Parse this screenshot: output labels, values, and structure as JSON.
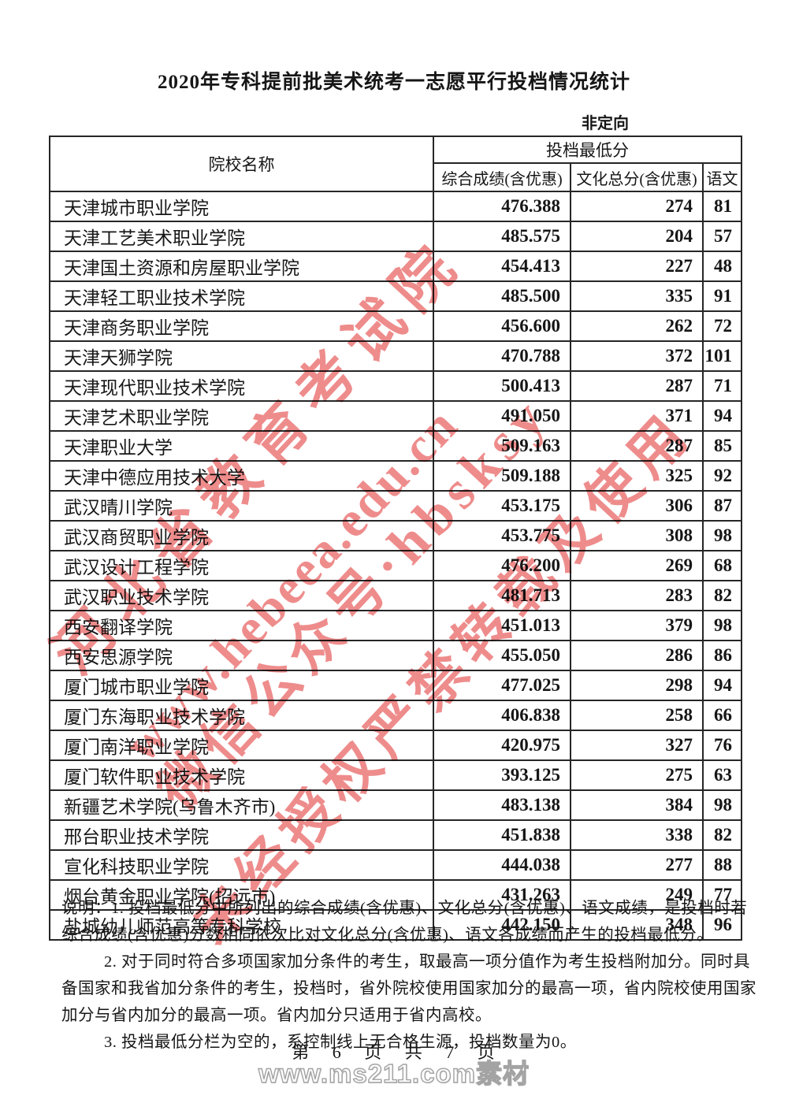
{
  "document": {
    "title": "2020年专科提前批美术统考一志愿平行投档情况统计",
    "subtitle": "非定向",
    "page_footer": "第 6 页 共 7 页",
    "site_watermark": "www.ms211.com素材",
    "red_watermark_lines": [
      "河北省教育考试院",
      "www.hebeea.edu.cn",
      "微信公众号·hbsksy",
      "未经授权严禁转载及使用"
    ]
  },
  "table": {
    "name_header": "院校名称",
    "group_header": "投档最低分",
    "sub_headers": [
      "综合成绩(含优惠)",
      "文化总分(含优惠)",
      "语文"
    ],
    "rows": [
      [
        "天津城市职业学院",
        "476.388",
        "274",
        "81"
      ],
      [
        "天津工艺美术职业学院",
        "485.575",
        "204",
        "57"
      ],
      [
        "天津国土资源和房屋职业学院",
        "454.413",
        "227",
        "48"
      ],
      [
        "天津轻工职业技术学院",
        "485.500",
        "335",
        "91"
      ],
      [
        "天津商务职业学院",
        "456.600",
        "262",
        "72"
      ],
      [
        "天津天狮学院",
        "470.788",
        "372",
        "101"
      ],
      [
        "天津现代职业技术学院",
        "500.413",
        "287",
        "71"
      ],
      [
        "天津艺术职业学院",
        "491.050",
        "371",
        "94"
      ],
      [
        "天津职业大学",
        "509.163",
        "287",
        "85"
      ],
      [
        "天津中德应用技术大学",
        "509.188",
        "325",
        "92"
      ],
      [
        "武汉晴川学院",
        "453.175",
        "306",
        "87"
      ],
      [
        "武汉商贸职业学院",
        "453.775",
        "308",
        "98"
      ],
      [
        "武汉设计工程学院",
        "476.200",
        "269",
        "68"
      ],
      [
        "武汉职业技术学院",
        "481.713",
        "283",
        "82"
      ],
      [
        "西安翻译学院",
        "451.013",
        "379",
        "98"
      ],
      [
        "西安思源学院",
        "455.050",
        "286",
        "86"
      ],
      [
        "厦门城市职业学院",
        "477.025",
        "298",
        "94"
      ],
      [
        "厦门东海职业技术学院",
        "406.838",
        "258",
        "66"
      ],
      [
        "厦门南洋职业学院",
        "420.975",
        "327",
        "76"
      ],
      [
        "厦门软件职业技术学院",
        "393.125",
        "275",
        "63"
      ],
      [
        "新疆艺术学院(乌鲁木齐市)",
        "483.138",
        "384",
        "98"
      ],
      [
        "邢台职业技术学院",
        "451.838",
        "338",
        "82"
      ],
      [
        "宣化科技职业学院",
        "444.038",
        "277",
        "88"
      ],
      [
        "烟台黄金职业学院(招远市)",
        "431.263",
        "249",
        "77"
      ],
      [
        "盐城幼儿师范高等专科学校",
        "442.150",
        "348",
        "96"
      ]
    ]
  },
  "notes": {
    "lines": [
      {
        "text": "说明：1. 投档最低分中所列出的综合成绩(含优惠)、文化总分(含优惠)、语文成绩，是投档时若",
        "indent": false
      },
      {
        "text": "综合成绩(含优惠)分数相同依次比对文化总分(含优惠)、语文各成绩而产生的投档最低分。",
        "indent": false
      },
      {
        "text": "2. 对于同时符合多项国家加分条件的考生，取最高一项分值作为考生投档附加分。同时具",
        "indent": true
      },
      {
        "text": "备国家和我省加分条件的考生，投档时，省外院校使用国家加分的最高一项，省内院校使用国家",
        "indent": false
      },
      {
        "text": "加分与省内加分的最高一项。省内加分只适用于省内高校。",
        "indent": false
      },
      {
        "text": "3. 投档最低分栏为空的，系控制线上无合格生源，投档数量为0。",
        "indent": true
      }
    ]
  }
}
